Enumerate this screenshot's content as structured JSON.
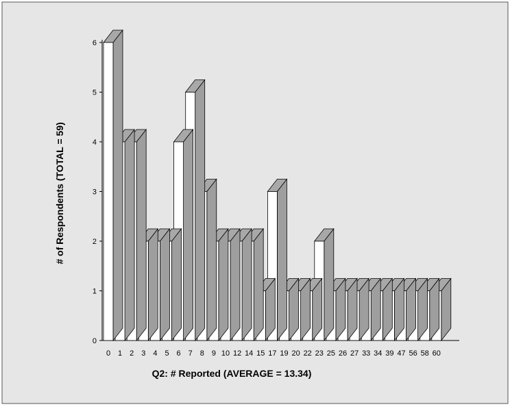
{
  "chart_data": {
    "type": "bar",
    "title": "",
    "xlabel": "Q2: # Reported (AVERAGE = 13.34)",
    "ylabel": "# of Respondents (TOTAL = 59)",
    "categories": [
      "0",
      "1",
      "2",
      "3",
      "4",
      "5",
      "6",
      "7",
      "8",
      "9",
      "10",
      "12",
      "14",
      "15",
      "17",
      "19",
      "20",
      "22",
      "23",
      "25",
      "26",
      "27",
      "33",
      "34",
      "39",
      "47",
      "56",
      "58",
      "60"
    ],
    "values": [
      6,
      4,
      4,
      2,
      2,
      2,
      4,
      5,
      3,
      2,
      2,
      2,
      2,
      1,
      3,
      1,
      1,
      1,
      2,
      1,
      1,
      1,
      1,
      1,
      1,
      1,
      1,
      1,
      1
    ],
    "ylim": [
      0,
      6
    ],
    "yticks": [
      "0",
      "1",
      "2",
      "3",
      "4",
      "5",
      "6"
    ],
    "grid": false,
    "style": "3d",
    "colors": {
      "background": "#e6e6e6",
      "bar_front": "#ffffff",
      "bar_side": "#9e9e9e",
      "bar_top": "#a8a8a8",
      "outline": "#000000",
      "frame": "#555555"
    }
  }
}
